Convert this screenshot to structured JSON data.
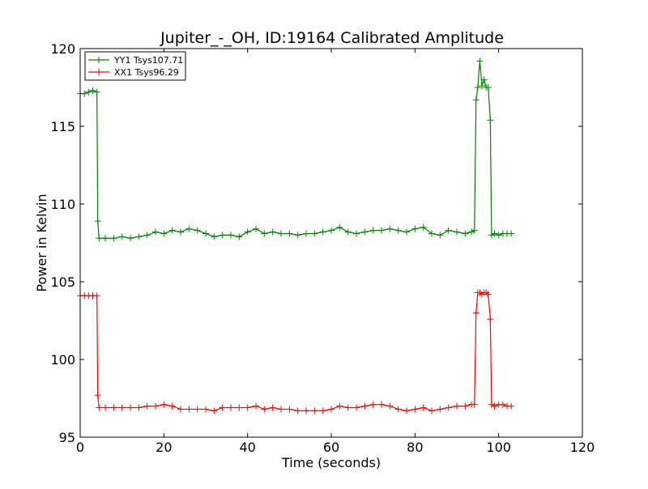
{
  "chart_data": {
    "type": "line",
    "title": "Jupiter_-_OH, ID:19164 Calibrated Amplitude",
    "xlabel": "Time (seconds)",
    "ylabel": "Power in Kelvin",
    "xlim": [
      0,
      120
    ],
    "ylim": [
      95,
      120
    ],
    "xticks": [
      "0",
      "20",
      "40",
      "60",
      "80",
      "100",
      "120"
    ],
    "yticks": [
      "95",
      "100",
      "105",
      "110",
      "115",
      "120"
    ],
    "grid": false,
    "legend_position": "top-left",
    "marker": "plus",
    "series": [
      {
        "name": "YY1 Tsys107.71",
        "color": "#008000",
        "points": [
          [
            0,
            117.1
          ],
          [
            1,
            117.1
          ],
          [
            2,
            117.2
          ],
          [
            3,
            117.3
          ],
          [
            4,
            117.2
          ],
          [
            4.2,
            108.9
          ],
          [
            4.5,
            107.8
          ],
          [
            6,
            107.8
          ],
          [
            8,
            107.8
          ],
          [
            10,
            107.9
          ],
          [
            12,
            107.8
          ],
          [
            14,
            107.9
          ],
          [
            16,
            108.0
          ],
          [
            18,
            108.2
          ],
          [
            20,
            108.1
          ],
          [
            22,
            108.3
          ],
          [
            24,
            108.2
          ],
          [
            26,
            108.4
          ],
          [
            28,
            108.3
          ],
          [
            30,
            108.1
          ],
          [
            32,
            107.9
          ],
          [
            34,
            108.0
          ],
          [
            36,
            108.0
          ],
          [
            38,
            107.9
          ],
          [
            40,
            108.2
          ],
          [
            42,
            108.4
          ],
          [
            44,
            108.1
          ],
          [
            46,
            108.2
          ],
          [
            48,
            108.1
          ],
          [
            50,
            108.1
          ],
          [
            52,
            108.0
          ],
          [
            54,
            108.1
          ],
          [
            56,
            108.1
          ],
          [
            58,
            108.2
          ],
          [
            60,
            108.3
          ],
          [
            62,
            108.5
          ],
          [
            64,
            108.2
          ],
          [
            66,
            108.1
          ],
          [
            68,
            108.2
          ],
          [
            70,
            108.3
          ],
          [
            72,
            108.3
          ],
          [
            74,
            108.4
          ],
          [
            76,
            108.3
          ],
          [
            78,
            108.2
          ],
          [
            80,
            108.4
          ],
          [
            82,
            108.5
          ],
          [
            84,
            108.1
          ],
          [
            86,
            108.0
          ],
          [
            88,
            108.3
          ],
          [
            90,
            108.2
          ],
          [
            92,
            108.1
          ],
          [
            93.5,
            108.2
          ],
          [
            94.2,
            108.3
          ],
          [
            94.6,
            116.7
          ],
          [
            95,
            117.5
          ],
          [
            95.5,
            119.2
          ],
          [
            96,
            117.6
          ],
          [
            96.5,
            118.0
          ],
          [
            97,
            117.5
          ],
          [
            97.5,
            117.5
          ],
          [
            98,
            115.4
          ],
          [
            98.3,
            108.0
          ],
          [
            99,
            108.1
          ],
          [
            100,
            108.0
          ],
          [
            101,
            108.1
          ],
          [
            102,
            108.1
          ],
          [
            103,
            108.1
          ]
        ]
      },
      {
        "name": "XX1 Tsys96.29",
        "color": "#ff0000",
        "points": [
          [
            0,
            104.1
          ],
          [
            1,
            104.1
          ],
          [
            2,
            104.1
          ],
          [
            3,
            104.1
          ],
          [
            4,
            104.1
          ],
          [
            4.2,
            97.7
          ],
          [
            4.5,
            96.9
          ],
          [
            6,
            96.9
          ],
          [
            8,
            96.9
          ],
          [
            10,
            96.9
          ],
          [
            12,
            96.9
          ],
          [
            14,
            96.9
          ],
          [
            16,
            97.0
          ],
          [
            18,
            97.0
          ],
          [
            20,
            97.1
          ],
          [
            22,
            97.0
          ],
          [
            24,
            96.8
          ],
          [
            26,
            96.8
          ],
          [
            28,
            96.8
          ],
          [
            30,
            96.8
          ],
          [
            32,
            96.7
          ],
          [
            34,
            96.9
          ],
          [
            36,
            96.9
          ],
          [
            38,
            96.9
          ],
          [
            40,
            96.9
          ],
          [
            42,
            97.0
          ],
          [
            44,
            96.8
          ],
          [
            46,
            96.9
          ],
          [
            48,
            96.8
          ],
          [
            50,
            96.8
          ],
          [
            52,
            96.7
          ],
          [
            54,
            96.7
          ],
          [
            56,
            96.7
          ],
          [
            58,
            96.7
          ],
          [
            60,
            96.8
          ],
          [
            62,
            97.0
          ],
          [
            64,
            96.9
          ],
          [
            66,
            96.9
          ],
          [
            68,
            97.0
          ],
          [
            70,
            97.1
          ],
          [
            72,
            97.1
          ],
          [
            74,
            97.0
          ],
          [
            76,
            96.8
          ],
          [
            78,
            96.7
          ],
          [
            80,
            96.8
          ],
          [
            82,
            96.9
          ],
          [
            84,
            96.7
          ],
          [
            86,
            96.8
          ],
          [
            88,
            96.9
          ],
          [
            90,
            97.0
          ],
          [
            92,
            97.0
          ],
          [
            93.5,
            97.1
          ],
          [
            94.2,
            97.1
          ],
          [
            94.6,
            103.0
          ],
          [
            95,
            104.3
          ],
          [
            95.5,
            104.3
          ],
          [
            96,
            104.2
          ],
          [
            96.5,
            104.3
          ],
          [
            97,
            104.3
          ],
          [
            97.5,
            104.2
          ],
          [
            98,
            102.6
          ],
          [
            98.3,
            97.1
          ],
          [
            99,
            97.0
          ],
          [
            100,
            97.1
          ],
          [
            101,
            97.1
          ],
          [
            102,
            97.0
          ],
          [
            103,
            97.0
          ]
        ]
      }
    ]
  }
}
